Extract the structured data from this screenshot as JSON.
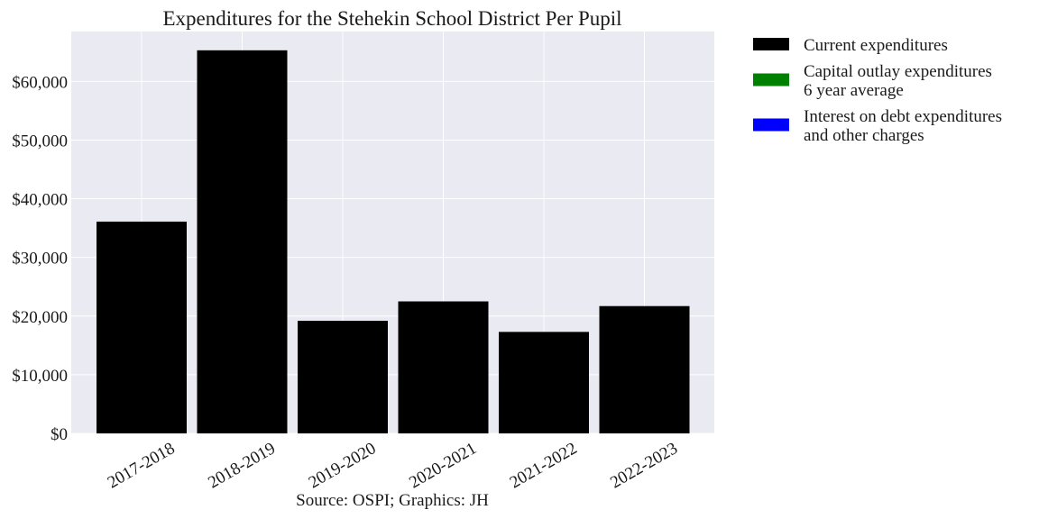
{
  "chart_data": {
    "type": "bar",
    "title": "Expenditures for the Stehekin School District Per Pupil",
    "xlabel": "Source: OSPI; Graphics: JH",
    "ylabel": "",
    "categories": [
      "2017-2018",
      "2018-2019",
      "2019-2020",
      "2020-2021",
      "2021-2022",
      "2022-2023"
    ],
    "series": [
      {
        "name": "Current expenditures",
        "color": "#000000",
        "values": [
          36100,
          65300,
          19200,
          22500,
          17300,
          21700
        ]
      },
      {
        "name": "Capital outlay expenditures\n6 year average",
        "color": "#008000",
        "values": [
          0,
          0,
          0,
          0,
          0,
          0
        ]
      },
      {
        "name": "Interest on debt expenditures\nand other charges",
        "color": "#0000ff",
        "values": [
          0,
          0,
          0,
          0,
          0,
          0
        ]
      }
    ],
    "ylim": [
      0,
      68500
    ],
    "yticks": [
      0,
      10000,
      20000,
      30000,
      40000,
      50000,
      60000
    ],
    "ytick_labels": [
      "$0",
      "$10,000",
      "$20,000",
      "$30,000",
      "$40,000",
      "$50,000",
      "$60,000"
    ],
    "grid": true,
    "legend_position": "outside-right",
    "plot_background": "#eaeaf2"
  }
}
